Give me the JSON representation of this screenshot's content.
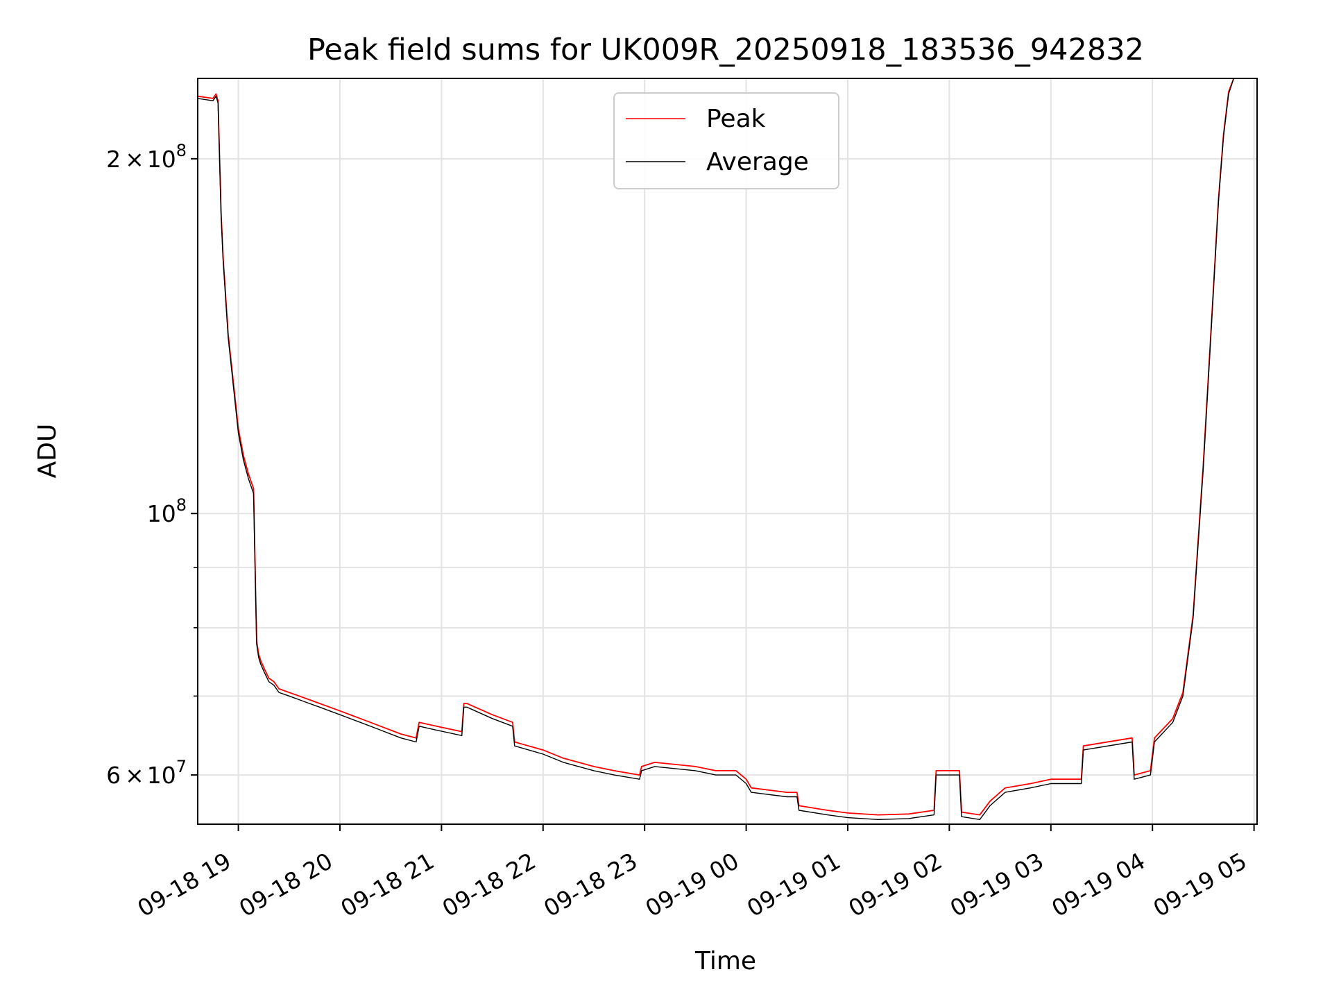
{
  "chart_data": {
    "type": "line",
    "title": "Peak field sums for UK009R_20250918_183536_942832",
    "xlabel": "Time",
    "ylabel": "ADU",
    "y_scale": "log",
    "ylim": [
      54500000,
      234000000
    ],
    "x_unit": "hours after 09-18 18:00",
    "xlim": [
      0.6,
      11.03
    ],
    "grid": true,
    "legend_position": "top-center",
    "x_ticks": [
      {
        "hour": 1,
        "label": "09-18 19"
      },
      {
        "hour": 2,
        "label": "09-18 20"
      },
      {
        "hour": 3,
        "label": "09-18 21"
      },
      {
        "hour": 4,
        "label": "09-18 22"
      },
      {
        "hour": 5,
        "label": "09-18 23"
      },
      {
        "hour": 6,
        "label": "09-19 00"
      },
      {
        "hour": 7,
        "label": "09-19 01"
      },
      {
        "hour": 8,
        "label": "09-19 02"
      },
      {
        "hour": 9,
        "label": "09-19 03"
      },
      {
        "hour": 10,
        "label": "09-19 04"
      },
      {
        "hour": 11,
        "label": "09-19 05"
      }
    ],
    "y_major_ticks": [
      {
        "value": 60000000,
        "mantissa": "6",
        "base": "10",
        "exp": "7"
      },
      {
        "value": 100000000,
        "mantissa": "",
        "base": "10",
        "exp": "8"
      },
      {
        "value": 200000000,
        "mantissa": "2",
        "base": "10",
        "exp": "8"
      }
    ],
    "y_minor_values": [
      70000000,
      80000000,
      90000000
    ],
    "series": [
      {
        "name": "Peak",
        "color": "#ff0000",
        "x": [
          0.6,
          0.75,
          0.78,
          0.8,
          0.83,
          0.85,
          0.9,
          1.0,
          1.05,
          1.1,
          1.15,
          1.18,
          1.2,
          1.22,
          1.25,
          1.3,
          1.35,
          1.4,
          1.5,
          1.6,
          1.7,
          1.8,
          2.0,
          2.2,
          2.4,
          2.6,
          2.75,
          2.78,
          2.95,
          3.2,
          3.22,
          3.25,
          3.5,
          3.7,
          3.72,
          4.0,
          4.2,
          4.5,
          4.7,
          4.95,
          4.97,
          5.1,
          5.5,
          5.7,
          5.9,
          6.0,
          6.05,
          6.4,
          6.5,
          6.52,
          6.8,
          7.0,
          7.3,
          7.6,
          7.85,
          7.87,
          8.1,
          8.12,
          8.3,
          8.4,
          8.55,
          8.8,
          9.0,
          9.2,
          9.3,
          9.32,
          9.8,
          9.82,
          9.98,
          10.02,
          10.2,
          10.3,
          10.4,
          10.5,
          10.6,
          10.65,
          10.7,
          10.75,
          10.8,
          10.85
        ],
        "values": [
          226000000,
          225000000,
          227000000,
          224000000,
          180000000,
          165000000,
          142000000,
          118000000,
          112000000,
          108000000,
          105000000,
          78000000,
          76000000,
          75000000,
          74000000,
          72500000,
          72000000,
          71000000,
          70500000,
          70000000,
          69500000,
          69000000,
          68000000,
          67000000,
          66000000,
          65000000,
          64500000,
          66500000,
          66000000,
          65300000,
          69000000,
          69000000,
          67500000,
          66500000,
          64000000,
          63000000,
          62000000,
          61000000,
          60500000,
          60000000,
          61000000,
          61500000,
          61000000,
          60500000,
          60500000,
          59500000,
          58500000,
          58000000,
          58000000,
          56500000,
          56000000,
          55700000,
          55500000,
          55600000,
          56000000,
          60500000,
          60500000,
          55800000,
          55500000,
          57000000,
          58500000,
          59000000,
          59500000,
          59500000,
          59500000,
          63500000,
          64500000,
          60000000,
          60500000,
          64500000,
          67000000,
          70500000,
          82000000,
          110000000,
          155000000,
          185000000,
          210000000,
          228000000,
          234000000,
          234000000
        ]
      },
      {
        "name": "Average",
        "color": "#000000",
        "x": [
          0.6,
          0.75,
          0.78,
          0.8,
          0.83,
          0.85,
          0.9,
          1.0,
          1.05,
          1.1,
          1.15,
          1.18,
          1.2,
          1.22,
          1.25,
          1.3,
          1.35,
          1.4,
          1.5,
          1.6,
          1.7,
          1.8,
          2.0,
          2.2,
          2.4,
          2.6,
          2.75,
          2.78,
          2.95,
          3.2,
          3.22,
          3.25,
          3.5,
          3.7,
          3.72,
          4.0,
          4.2,
          4.5,
          4.7,
          4.95,
          4.97,
          5.1,
          5.5,
          5.7,
          5.9,
          6.0,
          6.05,
          6.4,
          6.5,
          6.52,
          6.8,
          7.0,
          7.3,
          7.6,
          7.85,
          7.87,
          8.1,
          8.12,
          8.3,
          8.4,
          8.55,
          8.8,
          9.0,
          9.2,
          9.3,
          9.32,
          9.8,
          9.82,
          9.98,
          10.02,
          10.2,
          10.3,
          10.4,
          10.5,
          10.6,
          10.65,
          10.7,
          10.75,
          10.8,
          10.85
        ],
        "values": [
          225000000,
          224000000,
          226000000,
          223000000,
          179000000,
          164000000,
          141000000,
          117000000,
          111000000,
          107000000,
          104000000,
          77500000,
          75500000,
          74500000,
          73500000,
          72000000,
          71500000,
          70500000,
          70000000,
          69500000,
          69000000,
          68500000,
          67500000,
          66500000,
          65500000,
          64500000,
          64000000,
          66000000,
          65500000,
          64800000,
          68500000,
          68500000,
          67000000,
          66000000,
          63500000,
          62500000,
          61500000,
          60500000,
          60000000,
          59500000,
          60500000,
          61000000,
          60500000,
          60000000,
          60000000,
          59000000,
          58000000,
          57500000,
          57500000,
          56000000,
          55500000,
          55200000,
          55000000,
          55100000,
          55500000,
          60000000,
          60000000,
          55300000,
          55000000,
          56500000,
          58000000,
          58500000,
          59000000,
          59000000,
          59000000,
          63000000,
          64000000,
          59500000,
          60000000,
          64000000,
          66500000,
          70000000,
          81500000,
          109000000,
          154000000,
          184000000,
          209000000,
          227000000,
          234000000,
          234000000
        ]
      }
    ]
  }
}
